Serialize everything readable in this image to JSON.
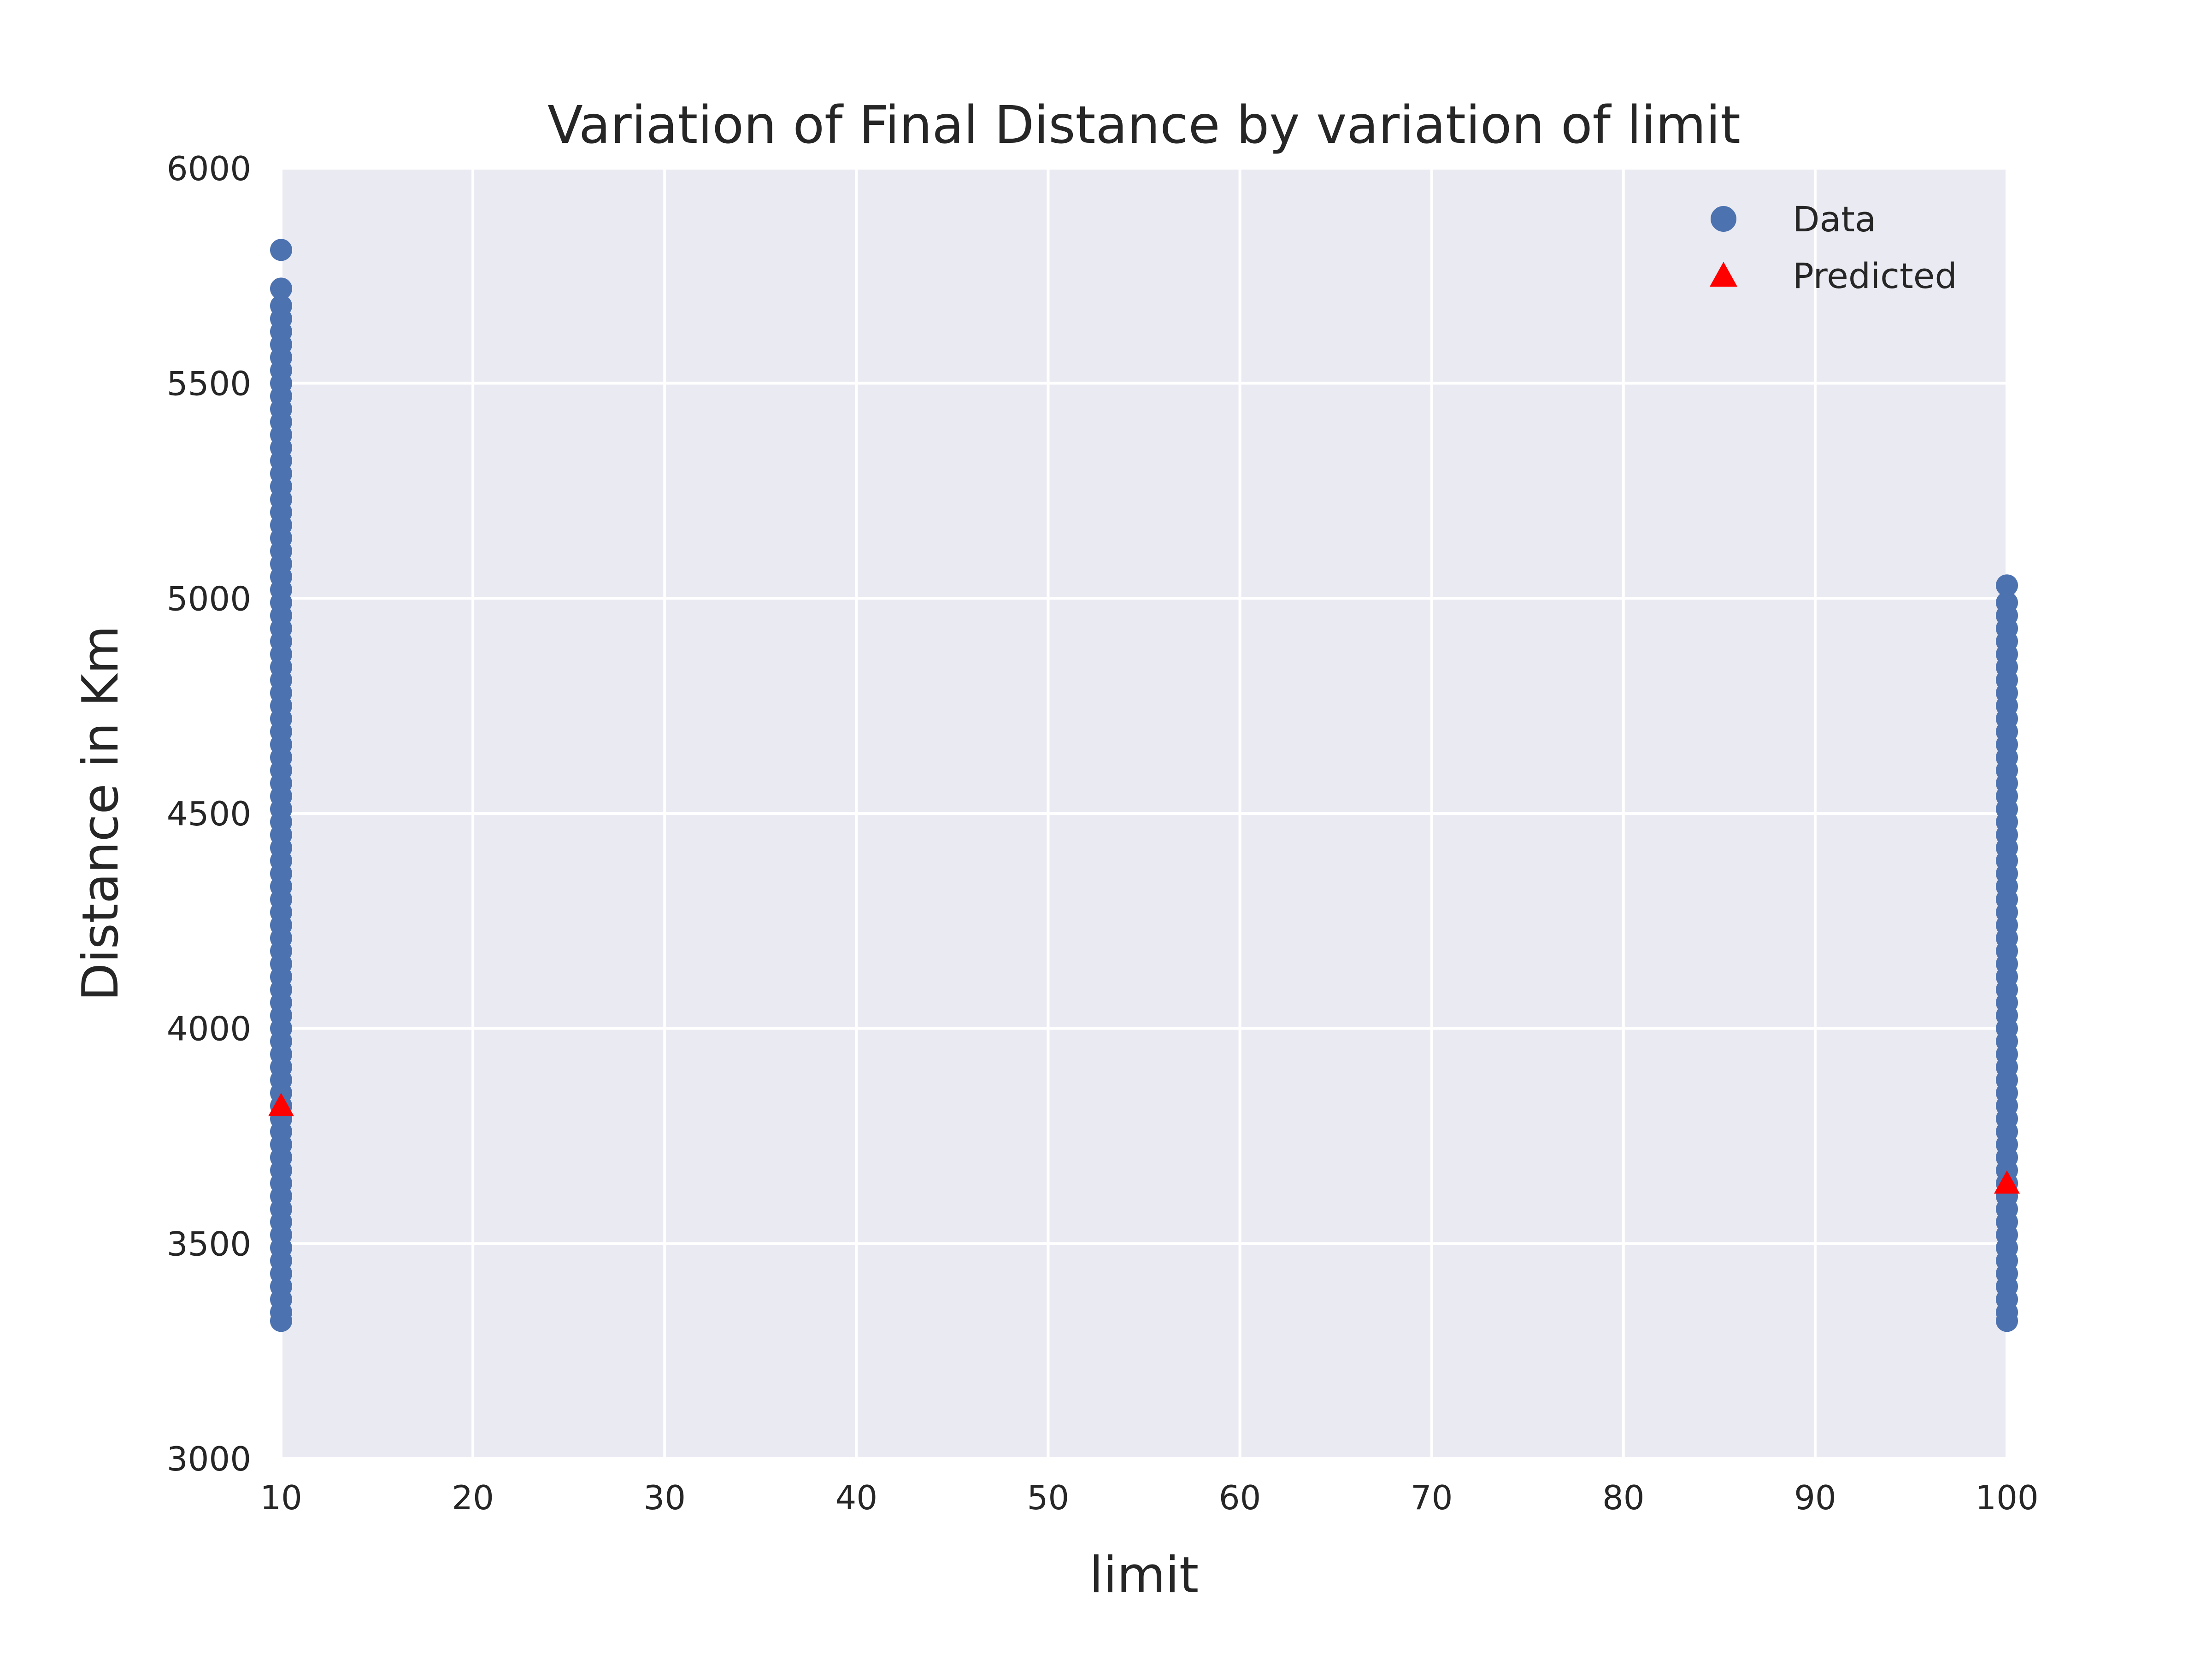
{
  "chart_data": {
    "type": "scatter",
    "title": "Variation of Final Distance by variation of limit",
    "xlabel": "limit",
    "ylabel": "Distance in Km",
    "xlim": [
      10,
      100
    ],
    "ylim": [
      3000,
      6000
    ],
    "x_ticks": [
      10,
      20,
      30,
      40,
      50,
      60,
      70,
      80,
      90,
      100
    ],
    "y_ticks": [
      3000,
      3500,
      4000,
      4500,
      5000,
      5500,
      6000
    ],
    "x_tick_labels": [
      "10",
      "20",
      "30",
      "40",
      "50",
      "60",
      "70",
      "80",
      "90",
      "100"
    ],
    "y_tick_labels": [
      "3000",
      "3500",
      "4000",
      "4500",
      "5000",
      "5500",
      "6000"
    ],
    "grid": true,
    "legend_position": "top-right",
    "series": [
      {
        "name": "Data",
        "marker": "circle",
        "color": "#4c72b0",
        "points": [
          {
            "x": 10,
            "y": 5810
          },
          {
            "x": 10,
            "y": 5720
          },
          {
            "x": 10,
            "y": 5680
          },
          {
            "x": 10,
            "y": 5650
          },
          {
            "x": 10,
            "y": 5620
          },
          {
            "x": 10,
            "y": 5590
          },
          {
            "x": 10,
            "y": 5560
          },
          {
            "x": 10,
            "y": 5530
          },
          {
            "x": 10,
            "y": 5500
          },
          {
            "x": 10,
            "y": 5470
          },
          {
            "x": 10,
            "y": 5440
          },
          {
            "x": 10,
            "y": 5410
          },
          {
            "x": 10,
            "y": 5380
          },
          {
            "x": 10,
            "y": 5350
          },
          {
            "x": 10,
            "y": 5320
          },
          {
            "x": 10,
            "y": 5290
          },
          {
            "x": 10,
            "y": 5260
          },
          {
            "x": 10,
            "y": 5230
          },
          {
            "x": 10,
            "y": 5200
          },
          {
            "x": 10,
            "y": 5170
          },
          {
            "x": 10,
            "y": 5140
          },
          {
            "x": 10,
            "y": 5110
          },
          {
            "x": 10,
            "y": 5080
          },
          {
            "x": 10,
            "y": 5050
          },
          {
            "x": 10,
            "y": 5020
          },
          {
            "x": 10,
            "y": 4990
          },
          {
            "x": 10,
            "y": 4960
          },
          {
            "x": 10,
            "y": 4930
          },
          {
            "x": 10,
            "y": 4900
          },
          {
            "x": 10,
            "y": 4870
          },
          {
            "x": 10,
            "y": 4840
          },
          {
            "x": 10,
            "y": 4810
          },
          {
            "x": 10,
            "y": 4780
          },
          {
            "x": 10,
            "y": 4750
          },
          {
            "x": 10,
            "y": 4720
          },
          {
            "x": 10,
            "y": 4690
          },
          {
            "x": 10,
            "y": 4660
          },
          {
            "x": 10,
            "y": 4630
          },
          {
            "x": 10,
            "y": 4600
          },
          {
            "x": 10,
            "y": 4570
          },
          {
            "x": 10,
            "y": 4540
          },
          {
            "x": 10,
            "y": 4510
          },
          {
            "x": 10,
            "y": 4480
          },
          {
            "x": 10,
            "y": 4450
          },
          {
            "x": 10,
            "y": 4420
          },
          {
            "x": 10,
            "y": 4390
          },
          {
            "x": 10,
            "y": 4360
          },
          {
            "x": 10,
            "y": 4330
          },
          {
            "x": 10,
            "y": 4300
          },
          {
            "x": 10,
            "y": 4270
          },
          {
            "x": 10,
            "y": 4240
          },
          {
            "x": 10,
            "y": 4210
          },
          {
            "x": 10,
            "y": 4180
          },
          {
            "x": 10,
            "y": 4150
          },
          {
            "x": 10,
            "y": 4120
          },
          {
            "x": 10,
            "y": 4090
          },
          {
            "x": 10,
            "y": 4060
          },
          {
            "x": 10,
            "y": 4030
          },
          {
            "x": 10,
            "y": 4000
          },
          {
            "x": 10,
            "y": 3970
          },
          {
            "x": 10,
            "y": 3940
          },
          {
            "x": 10,
            "y": 3910
          },
          {
            "x": 10,
            "y": 3880
          },
          {
            "x": 10,
            "y": 3850
          },
          {
            "x": 10,
            "y": 3820
          },
          {
            "x": 10,
            "y": 3790
          },
          {
            "x": 10,
            "y": 3760
          },
          {
            "x": 10,
            "y": 3730
          },
          {
            "x": 10,
            "y": 3700
          },
          {
            "x": 10,
            "y": 3670
          },
          {
            "x": 10,
            "y": 3640
          },
          {
            "x": 10,
            "y": 3610
          },
          {
            "x": 10,
            "y": 3580
          },
          {
            "x": 10,
            "y": 3550
          },
          {
            "x": 10,
            "y": 3520
          },
          {
            "x": 10,
            "y": 3490
          },
          {
            "x": 10,
            "y": 3460
          },
          {
            "x": 10,
            "y": 3430
          },
          {
            "x": 10,
            "y": 3400
          },
          {
            "x": 10,
            "y": 3370
          },
          {
            "x": 10,
            "y": 3340
          },
          {
            "x": 10,
            "y": 3320
          },
          {
            "x": 100,
            "y": 5030
          },
          {
            "x": 100,
            "y": 4990
          },
          {
            "x": 100,
            "y": 4960
          },
          {
            "x": 100,
            "y": 4930
          },
          {
            "x": 100,
            "y": 4900
          },
          {
            "x": 100,
            "y": 4870
          },
          {
            "x": 100,
            "y": 4840
          },
          {
            "x": 100,
            "y": 4810
          },
          {
            "x": 100,
            "y": 4780
          },
          {
            "x": 100,
            "y": 4750
          },
          {
            "x": 100,
            "y": 4720
          },
          {
            "x": 100,
            "y": 4690
          },
          {
            "x": 100,
            "y": 4660
          },
          {
            "x": 100,
            "y": 4630
          },
          {
            "x": 100,
            "y": 4600
          },
          {
            "x": 100,
            "y": 4570
          },
          {
            "x": 100,
            "y": 4540
          },
          {
            "x": 100,
            "y": 4510
          },
          {
            "x": 100,
            "y": 4480
          },
          {
            "x": 100,
            "y": 4450
          },
          {
            "x": 100,
            "y": 4420
          },
          {
            "x": 100,
            "y": 4390
          },
          {
            "x": 100,
            "y": 4360
          },
          {
            "x": 100,
            "y": 4330
          },
          {
            "x": 100,
            "y": 4300
          },
          {
            "x": 100,
            "y": 4270
          },
          {
            "x": 100,
            "y": 4240
          },
          {
            "x": 100,
            "y": 4210
          },
          {
            "x": 100,
            "y": 4180
          },
          {
            "x": 100,
            "y": 4150
          },
          {
            "x": 100,
            "y": 4120
          },
          {
            "x": 100,
            "y": 4090
          },
          {
            "x": 100,
            "y": 4060
          },
          {
            "x": 100,
            "y": 4030
          },
          {
            "x": 100,
            "y": 4000
          },
          {
            "x": 100,
            "y": 3970
          },
          {
            "x": 100,
            "y": 3940
          },
          {
            "x": 100,
            "y": 3910
          },
          {
            "x": 100,
            "y": 3880
          },
          {
            "x": 100,
            "y": 3850
          },
          {
            "x": 100,
            "y": 3820
          },
          {
            "x": 100,
            "y": 3790
          },
          {
            "x": 100,
            "y": 3760
          },
          {
            "x": 100,
            "y": 3730
          },
          {
            "x": 100,
            "y": 3700
          },
          {
            "x": 100,
            "y": 3670
          },
          {
            "x": 100,
            "y": 3640
          },
          {
            "x": 100,
            "y": 3610
          },
          {
            "x": 100,
            "y": 3580
          },
          {
            "x": 100,
            "y": 3550
          },
          {
            "x": 100,
            "y": 3520
          },
          {
            "x": 100,
            "y": 3490
          },
          {
            "x": 100,
            "y": 3460
          },
          {
            "x": 100,
            "y": 3430
          },
          {
            "x": 100,
            "y": 3400
          },
          {
            "x": 100,
            "y": 3370
          },
          {
            "x": 100,
            "y": 3340
          },
          {
            "x": 100,
            "y": 3320
          }
        ]
      },
      {
        "name": "Predicted",
        "marker": "triangle",
        "color": "#ff0000",
        "points": [
          {
            "x": 10,
            "y": 3820
          },
          {
            "x": 100,
            "y": 3640
          }
        ]
      }
    ],
    "colors": {
      "plot_background": "#eaeaf2",
      "grid": "#ffffff",
      "text": "#262626"
    }
  }
}
